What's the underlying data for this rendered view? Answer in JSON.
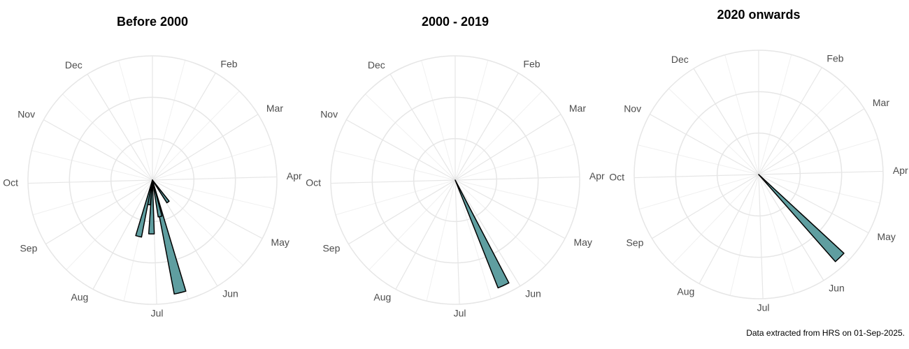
{
  "caption": "Data extracted from HRS on 01-Sep-2025.",
  "chart_data": [
    {
      "type": "polar-bar",
      "title": "Before 2000",
      "color": "#5f9ea0",
      "xlim": [
        0,
        366
      ],
      "bin_width": 6,
      "xticks": [
        {
          "value": 31,
          "label": "Feb"
        },
        {
          "value": 59,
          "label": "Mar"
        },
        {
          "value": 90,
          "label": "Apr"
        },
        {
          "value": 120,
          "label": "May"
        },
        {
          "value": 151,
          "label": "Jun"
        },
        {
          "value": 181,
          "label": "Jul"
        },
        {
          "value": 212,
          "label": "Aug"
        },
        {
          "value": 243,
          "label": "Sep"
        },
        {
          "value": 273,
          "label": "Oct"
        },
        {
          "value": 304,
          "label": "Nov"
        },
        {
          "value": 334,
          "label": "Dec"
        }
      ],
      "ylim": [
        0,
        3
      ],
      "yticks": [
        1,
        2,
        3
      ],
      "grid": true,
      "x": [
        147,
        169,
        171,
        184,
        191,
        197
      ],
      "values": [
        0.65,
        2.8,
        0.9,
        1.3,
        0.6,
        1.4
      ]
    },
    {
      "type": "polar-bar",
      "title": "2000 - 2019",
      "color": "#5f9ea0",
      "xlim": [
        0,
        366
      ],
      "bin_width": 6,
      "xticks": [
        {
          "value": 31,
          "label": "Feb"
        },
        {
          "value": 59,
          "label": "Mar"
        },
        {
          "value": 90,
          "label": "Apr"
        },
        {
          "value": 120,
          "label": "May"
        },
        {
          "value": 151,
          "label": "Jun"
        },
        {
          "value": 181,
          "label": "Jul"
        },
        {
          "value": 212,
          "label": "Aug"
        },
        {
          "value": 243,
          "label": "Sep"
        },
        {
          "value": 273,
          "label": "Oct"
        },
        {
          "value": 304,
          "label": "Nov"
        },
        {
          "value": 334,
          "label": "Dec"
        }
      ],
      "ylim": [
        0,
        3
      ],
      "yticks": [
        1,
        2,
        3
      ],
      "grid": true,
      "x": [
        158
      ],
      "values": [
        2.8
      ]
    },
    {
      "type": "polar-bar",
      "title": "2020 onwards",
      "color": "#5f9ea0",
      "xlim": [
        0,
        366
      ],
      "bin_width": 6,
      "xticks": [
        {
          "value": 31,
          "label": "Feb"
        },
        {
          "value": 59,
          "label": "Mar"
        },
        {
          "value": 90,
          "label": "Apr"
        },
        {
          "value": 120,
          "label": "May"
        },
        {
          "value": 151,
          "label": "Jun"
        },
        {
          "value": 181,
          "label": "Jul"
        },
        {
          "value": 212,
          "label": "Aug"
        },
        {
          "value": 243,
          "label": "Sep"
        },
        {
          "value": 273,
          "label": "Oct"
        },
        {
          "value": 304,
          "label": "Nov"
        },
        {
          "value": 334,
          "label": "Dec"
        }
      ],
      "ylim": [
        0,
        3
      ],
      "yticks": [
        1,
        2,
        3
      ],
      "grid": true,
      "x": [
        138
      ],
      "values": [
        2.8
      ]
    }
  ]
}
